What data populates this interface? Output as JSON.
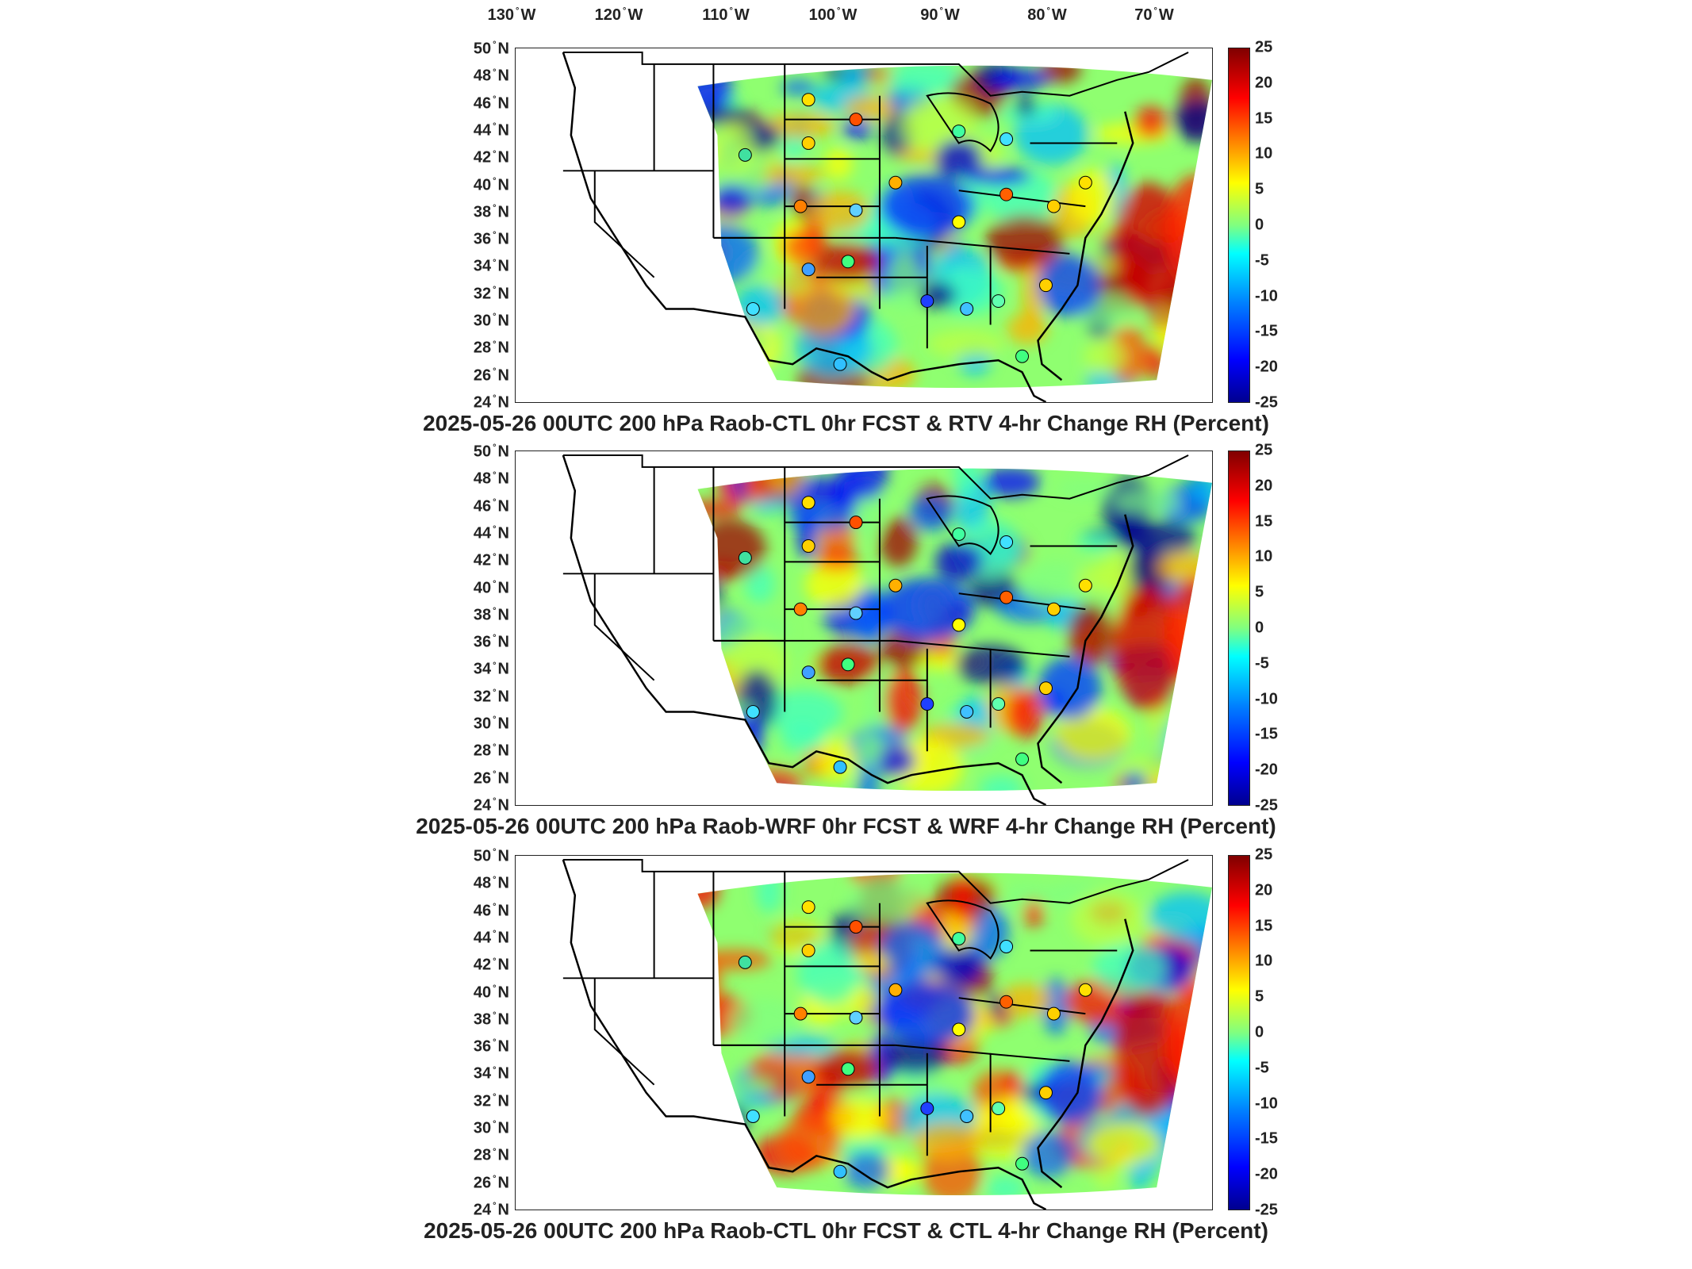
{
  "map": {
    "lon_ticks": [
      "130",
      "120",
      "110",
      "100",
      "90",
      "80",
      "70"
    ],
    "lon_suffix": "W",
    "lat_ticks": [
      "50",
      "48",
      "46",
      "44",
      "42",
      "40",
      "38",
      "36",
      "34",
      "32",
      "30",
      "28",
      "26",
      "24"
    ],
    "lat_suffix": "N",
    "degree_symbol": "°",
    "colorbar_ticks": [
      "25",
      "20",
      "15",
      "10",
      "5",
      "0",
      "-5",
      "-10",
      "-15",
      "-20",
      "-25"
    ],
    "colorbar_range": [
      -25,
      25
    ],
    "colormap": "jet",
    "colors": {
      "low": "#00008f",
      "mid": "#80ff80",
      "high": "#800000",
      "outline": "#000000"
    }
  },
  "panels": [
    {
      "caption": "2025-05-26 00UTC 200 hPa Raob-CTL 0hr FCST & RTV 4-hr Change RH (Percent)"
    },
    {
      "caption": "2025-05-26 00UTC 200 hPa Raob-WRF 0hr FCST & WRF 4-hr Change RH (Percent)"
    },
    {
      "caption": "2025-05-26 00UTC 200 hPa Raob-CTL 0hr FCST & CTL 4-hr Change RH (Percent)"
    }
  ]
}
